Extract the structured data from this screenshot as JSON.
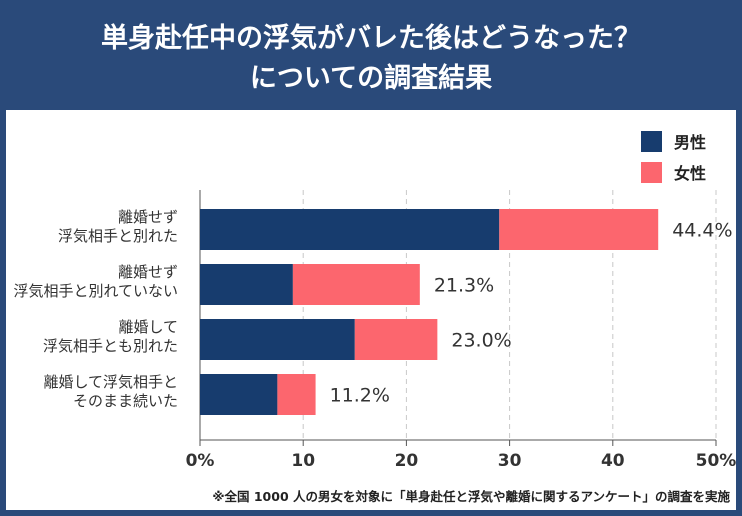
{
  "title_line1": "単身赴任中の浮気がバレた後はどうなった？",
  "title_line2": "についての調査結果",
  "footnote": "※全国 1000 人の男女を対象に「単身赴任と浮気や離婚に関するアンケート」の調査を実施",
  "colors": {
    "header": "#2a4a7a",
    "male": "#173c6e",
    "female": "#fc666e",
    "grid": "#c8c8c8"
  },
  "chart_data": {
    "type": "bar",
    "orientation": "horizontal",
    "stacked": true,
    "categories": [
      [
        "離婚せず",
        "浮気相手と別れた"
      ],
      [
        "離婚せず",
        "浮気相手と別れていない"
      ],
      [
        "離婚して",
        "浮気相手とも別れた"
      ],
      [
        "離婚して浮気相手と",
        "そのまま続いた"
      ]
    ],
    "series": [
      {
        "name": "男性",
        "values": [
          29.0,
          9.0,
          15.0,
          7.5
        ]
      },
      {
        "name": "女性",
        "values": [
          15.4,
          12.3,
          8.0,
          3.7
        ]
      }
    ],
    "totals": [
      "44.4%",
      "21.3%",
      "23.0%",
      "11.2%"
    ],
    "xlim": [
      0,
      50
    ],
    "xticks": [
      "0%",
      "10",
      "20",
      "30",
      "40",
      "50%"
    ],
    "grid": true,
    "legend": "top-right"
  }
}
